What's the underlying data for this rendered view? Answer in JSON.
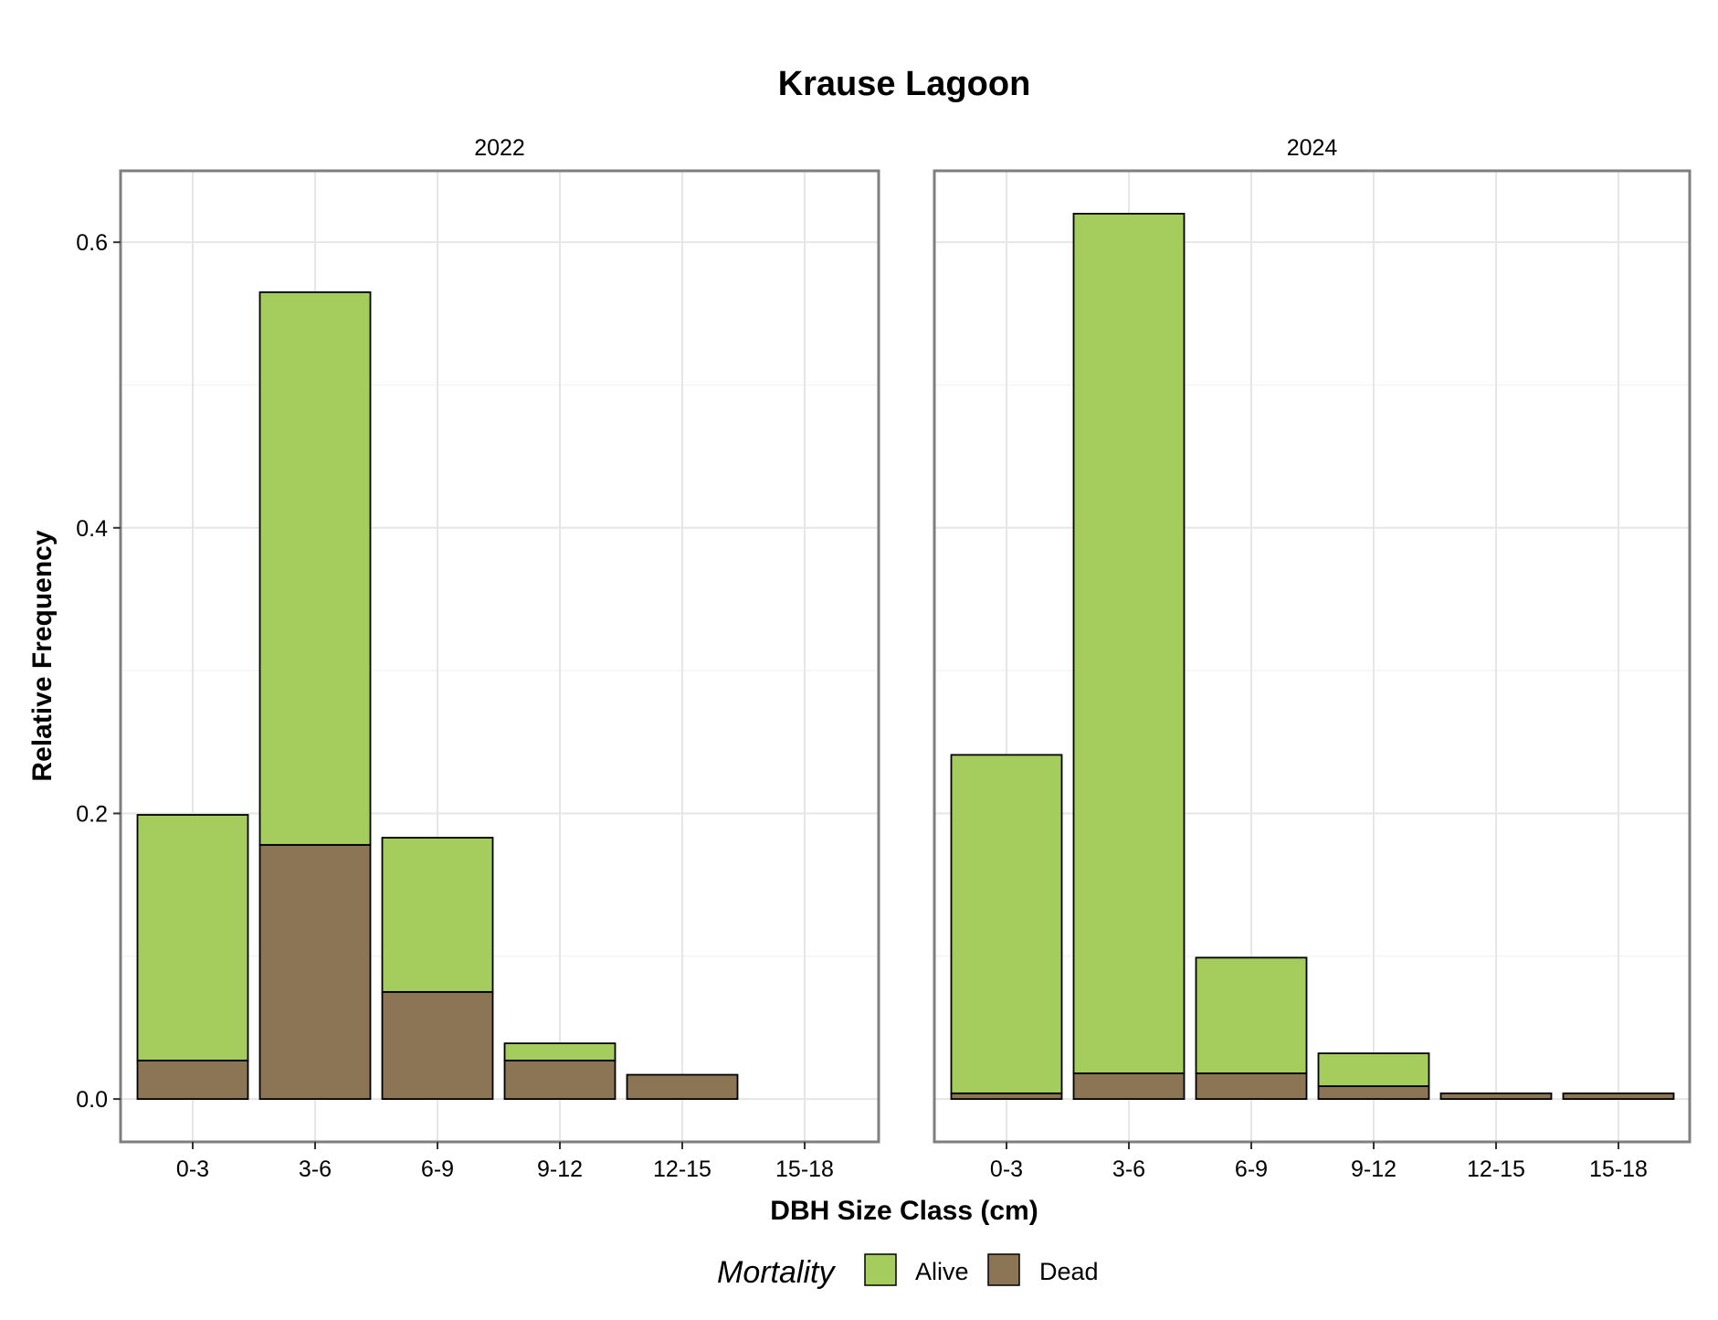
{
  "chart_data": {
    "type": "bar",
    "stacked": true,
    "title": "Krause Lagoon",
    "xlabel": "DBH Size Class (cm)",
    "ylabel": "Relative Frequency",
    "categories": [
      "0-3",
      "3-6",
      "6-9",
      "9-12",
      "12-15",
      "15-18"
    ],
    "ylim": [
      -0.03,
      0.65
    ],
    "yticks": [
      "0.0",
      "0.2",
      "0.4",
      "0.6"
    ],
    "ytick_values": [
      0.0,
      0.2,
      0.4,
      0.6
    ],
    "grid": true,
    "legend": {
      "title": "Mortality",
      "position": "bottom",
      "items": [
        {
          "name": "Alive",
          "color": "#a5cd5d"
        },
        {
          "name": "Dead",
          "color": "#8c7554"
        }
      ]
    },
    "colors": {
      "Alive": "#a5cd5d",
      "Dead": "#8c7554"
    },
    "panels": [
      {
        "label": "2022",
        "series": [
          {
            "name": "Dead",
            "values": [
              0.027,
              0.178,
              0.075,
              0.027,
              0.017,
              0
            ]
          },
          {
            "name": "Alive",
            "values": [
              0.172,
              0.387,
              0.108,
              0.012,
              0,
              0
            ]
          }
        ]
      },
      {
        "label": "2024",
        "series": [
          {
            "name": "Dead",
            "values": [
              0.004,
              0.018,
              0.018,
              0.009,
              0.004,
              0.004
            ]
          },
          {
            "name": "Alive",
            "values": [
              0.237,
              0.602,
              0.081,
              0.023,
              0,
              0
            ]
          }
        ]
      }
    ]
  }
}
